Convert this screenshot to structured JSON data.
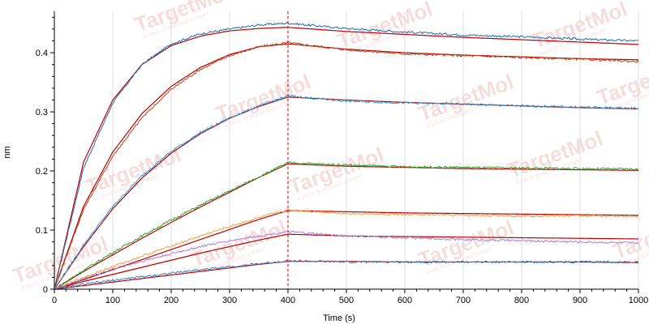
{
  "chart_data": {
    "type": "line",
    "title": "",
    "xlabel": "Time (s)",
    "ylabel": "nm",
    "xlim": [
      0,
      1000
    ],
    "ylim": [
      0,
      0.47
    ],
    "xticks": [
      0,
      100,
      200,
      300,
      400,
      500,
      600,
      700,
      800,
      900,
      1000
    ],
    "yticks": [
      0,
      0.1,
      0.2,
      0.3,
      0.4
    ],
    "ytick_labels": [
      "0",
      "0.1",
      "0.2",
      "0.3",
      "0.4"
    ],
    "grid": "vertical",
    "legend": "none",
    "annotations": [
      {
        "type": "vertical-dashed-line",
        "x": 400,
        "color": "#cc0000"
      }
    ],
    "fit_color": "#c00000",
    "series": [
      {
        "color": "#1f6db5",
        "points": [
          [
            0,
            0
          ],
          [
            50,
            0.205
          ],
          [
            100,
            0.315
          ],
          [
            150,
            0.38
          ],
          [
            200,
            0.415
          ],
          [
            250,
            0.432
          ],
          [
            300,
            0.44
          ],
          [
            350,
            0.447
          ],
          [
            400,
            0.45
          ],
          [
            500,
            0.441
          ],
          [
            600,
            0.435
          ],
          [
            700,
            0.43
          ],
          [
            800,
            0.427
          ],
          [
            900,
            0.423
          ],
          [
            1000,
            0.42
          ]
        ],
        "fit": [
          [
            0,
            0
          ],
          [
            50,
            0.215
          ],
          [
            100,
            0.32
          ],
          [
            150,
            0.38
          ],
          [
            200,
            0.412
          ],
          [
            250,
            0.428
          ],
          [
            300,
            0.437
          ],
          [
            350,
            0.441
          ],
          [
            400,
            0.443
          ],
          [
            500,
            0.436
          ],
          [
            600,
            0.431
          ],
          [
            700,
            0.426
          ],
          [
            800,
            0.422
          ],
          [
            900,
            0.418
          ],
          [
            1000,
            0.414
          ]
        ]
      },
      {
        "color": "#b5451b",
        "points": [
          [
            0,
            0
          ],
          [
            50,
            0.135
          ],
          [
            100,
            0.225
          ],
          [
            150,
            0.29
          ],
          [
            200,
            0.338
          ],
          [
            250,
            0.372
          ],
          [
            300,
            0.395
          ],
          [
            350,
            0.41
          ],
          [
            400,
            0.417
          ],
          [
            500,
            0.405
          ],
          [
            600,
            0.398
          ],
          [
            700,
            0.395
          ],
          [
            800,
            0.392
          ],
          [
            900,
            0.389
          ],
          [
            1000,
            0.385
          ]
        ],
        "fit": [
          [
            0,
            0
          ],
          [
            50,
            0.14
          ],
          [
            100,
            0.232
          ],
          [
            150,
            0.297
          ],
          [
            200,
            0.343
          ],
          [
            250,
            0.375
          ],
          [
            300,
            0.397
          ],
          [
            350,
            0.41
          ],
          [
            400,
            0.415
          ],
          [
            500,
            0.406
          ],
          [
            600,
            0.4
          ],
          [
            700,
            0.396
          ],
          [
            800,
            0.393
          ],
          [
            900,
            0.39
          ],
          [
            1000,
            0.388
          ]
        ]
      },
      {
        "color": "#2e9bd6",
        "points": [
          [
            0,
            0
          ],
          [
            50,
            0.075
          ],
          [
            100,
            0.14
          ],
          [
            150,
            0.192
          ],
          [
            200,
            0.233
          ],
          [
            250,
            0.265
          ],
          [
            300,
            0.29
          ],
          [
            350,
            0.31
          ],
          [
            400,
            0.327
          ],
          [
            500,
            0.318
          ],
          [
            600,
            0.315
          ],
          [
            700,
            0.313
          ],
          [
            800,
            0.31
          ],
          [
            900,
            0.308
          ],
          [
            1000,
            0.306
          ]
        ],
        "fit": [
          [
            0,
            0
          ],
          [
            50,
            0.072
          ],
          [
            100,
            0.136
          ],
          [
            150,
            0.188
          ],
          [
            200,
            0.23
          ],
          [
            250,
            0.263
          ],
          [
            300,
            0.289
          ],
          [
            350,
            0.309
          ],
          [
            400,
            0.325
          ],
          [
            500,
            0.32
          ],
          [
            600,
            0.316
          ],
          [
            700,
            0.313
          ],
          [
            800,
            0.31
          ],
          [
            900,
            0.307
          ],
          [
            1000,
            0.305
          ]
        ]
      },
      {
        "color": "#2aa02a",
        "points": [
          [
            0,
            0
          ],
          [
            50,
            0.032
          ],
          [
            100,
            0.062
          ],
          [
            150,
            0.09
          ],
          [
            200,
            0.117
          ],
          [
            250,
            0.142
          ],
          [
            300,
            0.166
          ],
          [
            350,
            0.19
          ],
          [
            400,
            0.214
          ],
          [
            500,
            0.21
          ],
          [
            600,
            0.207
          ],
          [
            700,
            0.206
          ],
          [
            800,
            0.205
          ],
          [
            900,
            0.204
          ],
          [
            1000,
            0.203
          ]
        ],
        "fit": [
          [
            0,
            0
          ],
          [
            50,
            0.03
          ],
          [
            100,
            0.058
          ],
          [
            150,
            0.086
          ],
          [
            200,
            0.113
          ],
          [
            250,
            0.139
          ],
          [
            300,
            0.164
          ],
          [
            350,
            0.189
          ],
          [
            400,
            0.212
          ],
          [
            500,
            0.208
          ],
          [
            600,
            0.206
          ],
          [
            700,
            0.204
          ],
          [
            800,
            0.203
          ],
          [
            900,
            0.202
          ],
          [
            1000,
            0.201
          ]
        ]
      },
      {
        "color": "#f0a040",
        "points": [
          [
            0,
            0
          ],
          [
            50,
            0.02
          ],
          [
            100,
            0.038
          ],
          [
            150,
            0.056
          ],
          [
            200,
            0.073
          ],
          [
            250,
            0.09
          ],
          [
            300,
            0.106
          ],
          [
            350,
            0.121
          ],
          [
            400,
            0.134
          ],
          [
            500,
            0.128
          ],
          [
            600,
            0.126
          ],
          [
            700,
            0.125
          ],
          [
            800,
            0.124
          ],
          [
            900,
            0.124
          ],
          [
            1000,
            0.123
          ]
        ],
        "fit": [
          [
            0,
            0
          ],
          [
            50,
            0.016
          ],
          [
            100,
            0.033
          ],
          [
            150,
            0.05
          ],
          [
            200,
            0.067
          ],
          [
            250,
            0.084
          ],
          [
            300,
            0.101
          ],
          [
            350,
            0.118
          ],
          [
            400,
            0.133
          ],
          [
            500,
            0.131
          ],
          [
            600,
            0.129
          ],
          [
            700,
            0.128
          ],
          [
            800,
            0.127
          ],
          [
            900,
            0.126
          ],
          [
            1000,
            0.125
          ]
        ]
      },
      {
        "color": "#a97fd6",
        "points": [
          [
            0,
            0
          ],
          [
            50,
            0.018
          ],
          [
            100,
            0.034
          ],
          [
            150,
            0.047
          ],
          [
            200,
            0.06
          ],
          [
            250,
            0.072
          ],
          [
            300,
            0.082
          ],
          [
            350,
            0.09
          ],
          [
            400,
            0.097
          ],
          [
            500,
            0.09
          ],
          [
            600,
            0.087
          ],
          [
            700,
            0.084
          ],
          [
            800,
            0.082
          ],
          [
            900,
            0.08
          ],
          [
            1000,
            0.078
          ]
        ],
        "fit": [
          [
            0,
            0
          ],
          [
            50,
            0.013
          ],
          [
            100,
            0.025
          ],
          [
            150,
            0.037
          ],
          [
            200,
            0.049
          ],
          [
            250,
            0.061
          ],
          [
            300,
            0.072
          ],
          [
            350,
            0.083
          ],
          [
            400,
            0.093
          ],
          [
            500,
            0.09
          ],
          [
            600,
            0.089
          ],
          [
            700,
            0.088
          ],
          [
            800,
            0.087
          ],
          [
            900,
            0.086
          ],
          [
            1000,
            0.085
          ]
        ]
      },
      {
        "color": "#3a7fc4",
        "points": [
          [
            0,
            0
          ],
          [
            50,
            0.008
          ],
          [
            100,
            0.015
          ],
          [
            150,
            0.021
          ],
          [
            200,
            0.027
          ],
          [
            250,
            0.033
          ],
          [
            300,
            0.038
          ],
          [
            350,
            0.043
          ],
          [
            400,
            0.048
          ],
          [
            500,
            0.046
          ],
          [
            600,
            0.046
          ],
          [
            700,
            0.046
          ],
          [
            800,
            0.046
          ],
          [
            900,
            0.046
          ],
          [
            1000,
            0.046
          ]
        ],
        "fit": [
          [
            0,
            0
          ],
          [
            50,
            0.006
          ],
          [
            100,
            0.012
          ],
          [
            150,
            0.018
          ],
          [
            200,
            0.024
          ],
          [
            250,
            0.03
          ],
          [
            300,
            0.036
          ],
          [
            350,
            0.042
          ],
          [
            400,
            0.047
          ],
          [
            500,
            0.047
          ],
          [
            600,
            0.046
          ],
          [
            700,
            0.046
          ],
          [
            800,
            0.046
          ],
          [
            900,
            0.046
          ],
          [
            1000,
            0.045
          ]
        ]
      }
    ]
  },
  "watermark": {
    "brand": "TargetMol",
    "tagline": "A DRUG SCREENING EXPERT",
    "color": "#e8a0a0"
  }
}
